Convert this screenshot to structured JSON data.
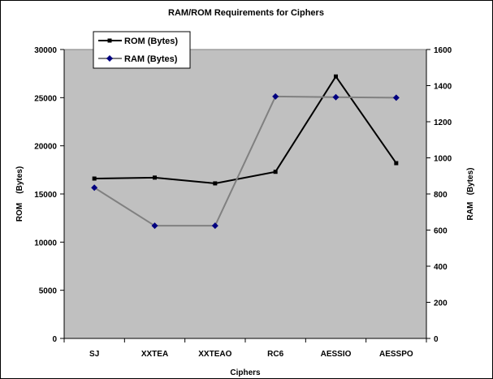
{
  "chart_data": {
    "type": "line",
    "title": "RAM/ROM Requirements for Ciphers",
    "xlabel": "Ciphers",
    "ylabel_left": "ROM    (Bytes)",
    "ylabel_right": "RAM   (Bytes)",
    "categories": [
      "SJ",
      "XXTEA",
      "XXTEAO",
      "RC6",
      "AESSIO",
      "AESSPO"
    ],
    "ylim_left": [
      0,
      30000
    ],
    "ylim_right": [
      0,
      1600
    ],
    "yticks_left": [
      "0",
      "5000",
      "10000",
      "15000",
      "20000",
      "25000",
      "30000"
    ],
    "yticks_right": [
      "0",
      "200",
      "400",
      "600",
      "800",
      "1000",
      "1200",
      "1400",
      "1600"
    ],
    "series": [
      {
        "name": "ROM (Bytes)",
        "axis": "left",
        "color": "#000000",
        "marker": "square",
        "values": [
          16600,
          16700,
          16100,
          17300,
          27200,
          18200
        ]
      },
      {
        "name": "RAM (Bytes)",
        "axis": "right",
        "color": "#808080",
        "marker": "diamond",
        "values": [
          835,
          624,
          624,
          1340,
          1336,
          1333
        ]
      }
    ],
    "plot_background": "#c0c0c0",
    "marker_colors": {
      "ROM (Bytes)": "#000000",
      "RAM (Bytes)": "#000080"
    },
    "grid": false,
    "legend_position": "top-left"
  }
}
